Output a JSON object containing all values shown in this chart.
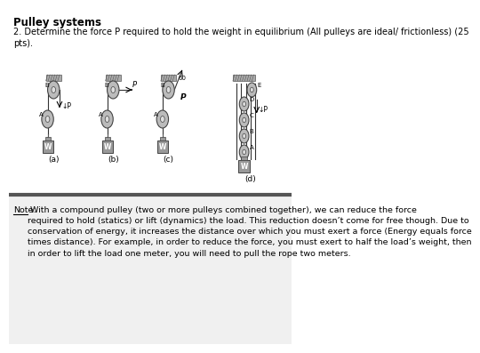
{
  "title": "Pulley systems",
  "question": "2. Determine the force P required to hold the weight in equilibrium (All pulleys are ideal/ frictionless) (25\npts).",
  "note_label": "Note:",
  "note_text": " With a compound pulley (two or more pulleys combined together), we can reduce the force\nrequired to hold (statics) or lift (dynamics) the load. This reduction doesn’t come for free though. Due to\nconservation of energy, it increases the distance over which you must exert a force (Energy equals force\ntimes distance). For example, in order to reduce the force, you must exert to half the load’s weight, then\nin order to lift the load one meter, you will need to pull the rope two meters.",
  "bg_color": "#f0f0f0",
  "white_bg": "#ffffff",
  "separator_color": "#555555",
  "diagram_labels": [
    "(a)",
    "(b)",
    "(c)",
    "(d)"
  ]
}
